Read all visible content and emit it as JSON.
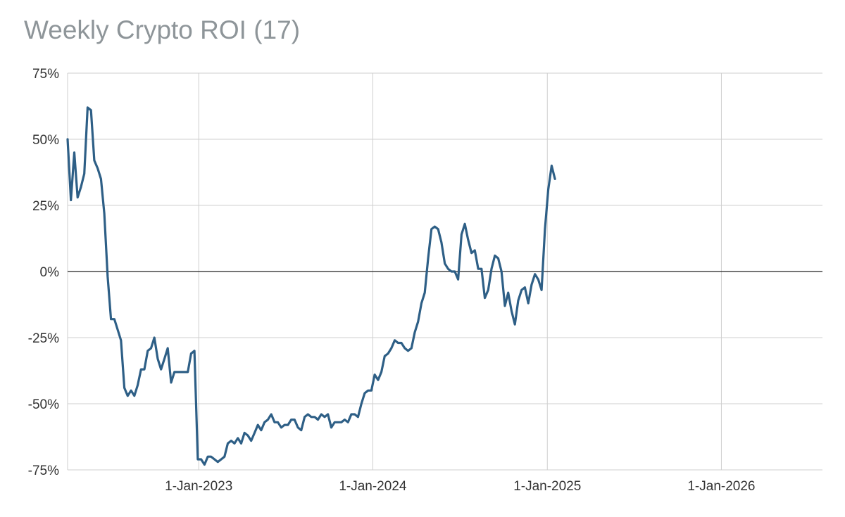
{
  "chart_data": {
    "type": "line",
    "title": "Weekly Crypto ROI (17)",
    "xlabel": "",
    "ylabel": "",
    "ylim": [
      -0.75,
      0.75
    ],
    "xlim": [
      "2022-04-01",
      "2026-08-01"
    ],
    "y_ticks": [
      {
        "value": 0.75,
        "label": "75%"
      },
      {
        "value": 0.5,
        "label": "50%"
      },
      {
        "value": 0.25,
        "label": "25%"
      },
      {
        "value": 0,
        "label": "0%"
      },
      {
        "value": -0.25,
        "label": "-25%"
      },
      {
        "value": -0.5,
        "label": "-50%"
      },
      {
        "value": -0.75,
        "label": "-75%"
      }
    ],
    "x_ticks": [
      {
        "value": "2023-01-01",
        "label": "1-Jan-2023"
      },
      {
        "value": "2024-01-01",
        "label": "1-Jan-2024"
      },
      {
        "value": "2025-01-01",
        "label": "1-Jan-2025"
      },
      {
        "value": "2026-01-01",
        "label": "1-Jan-2026"
      }
    ],
    "grid": true,
    "legend": "none",
    "series": [
      {
        "color": "#2e5f86",
        "points": [
          [
            "2022-04-01",
            0.5
          ],
          [
            "2022-04-08",
            0.27
          ],
          [
            "2022-04-15",
            0.45
          ],
          [
            "2022-04-22",
            0.28
          ],
          [
            "2022-04-29",
            0.32
          ],
          [
            "2022-05-06",
            0.37
          ],
          [
            "2022-05-13",
            0.62
          ],
          [
            "2022-05-20",
            0.61
          ],
          [
            "2022-05-27",
            0.42
          ],
          [
            "2022-06-03",
            0.39
          ],
          [
            "2022-06-10",
            0.35
          ],
          [
            "2022-06-17",
            0.22
          ],
          [
            "2022-06-24",
            -0.02
          ],
          [
            "2022-07-01",
            -0.18
          ],
          [
            "2022-07-08",
            -0.18
          ],
          [
            "2022-07-15",
            -0.22
          ],
          [
            "2022-07-22",
            -0.26
          ],
          [
            "2022-07-29",
            -0.44
          ],
          [
            "2022-08-05",
            -0.47
          ],
          [
            "2022-08-12",
            -0.45
          ],
          [
            "2022-08-19",
            -0.47
          ],
          [
            "2022-08-26",
            -0.43
          ],
          [
            "2022-09-02",
            -0.37
          ],
          [
            "2022-09-09",
            -0.37
          ],
          [
            "2022-09-16",
            -0.3
          ],
          [
            "2022-09-23",
            -0.29
          ],
          [
            "2022-09-30",
            -0.25
          ],
          [
            "2022-10-07",
            -0.33
          ],
          [
            "2022-10-14",
            -0.37
          ],
          [
            "2022-10-21",
            -0.33
          ],
          [
            "2022-10-28",
            -0.29
          ],
          [
            "2022-11-04",
            -0.42
          ],
          [
            "2022-11-11",
            -0.38
          ],
          [
            "2022-11-18",
            -0.38
          ],
          [
            "2022-11-25",
            -0.38
          ],
          [
            "2022-12-02",
            -0.38
          ],
          [
            "2022-12-09",
            -0.38
          ],
          [
            "2022-12-16",
            -0.31
          ],
          [
            "2022-12-23",
            -0.3
          ],
          [
            "2022-12-30",
            -0.71
          ],
          [
            "2023-01-06",
            -0.71
          ],
          [
            "2023-01-13",
            -0.73
          ],
          [
            "2023-01-20",
            -0.7
          ],
          [
            "2023-01-27",
            -0.7
          ],
          [
            "2023-02-03",
            -0.71
          ],
          [
            "2023-02-10",
            -0.72
          ],
          [
            "2023-02-17",
            -0.71
          ],
          [
            "2023-02-24",
            -0.7
          ],
          [
            "2023-03-03",
            -0.65
          ],
          [
            "2023-03-10",
            -0.64
          ],
          [
            "2023-03-17",
            -0.65
          ],
          [
            "2023-03-24",
            -0.63
          ],
          [
            "2023-03-31",
            -0.65
          ],
          [
            "2023-04-07",
            -0.61
          ],
          [
            "2023-04-14",
            -0.62
          ],
          [
            "2023-04-21",
            -0.64
          ],
          [
            "2023-04-28",
            -0.61
          ],
          [
            "2023-05-05",
            -0.58
          ],
          [
            "2023-05-12",
            -0.6
          ],
          [
            "2023-05-19",
            -0.57
          ],
          [
            "2023-05-26",
            -0.56
          ],
          [
            "2023-06-02",
            -0.54
          ],
          [
            "2023-06-09",
            -0.57
          ],
          [
            "2023-06-16",
            -0.57
          ],
          [
            "2023-06-23",
            -0.59
          ],
          [
            "2023-06-30",
            -0.58
          ],
          [
            "2023-07-07",
            -0.58
          ],
          [
            "2023-07-14",
            -0.56
          ],
          [
            "2023-07-21",
            -0.56
          ],
          [
            "2023-07-28",
            -0.59
          ],
          [
            "2023-08-04",
            -0.6
          ],
          [
            "2023-08-11",
            -0.55
          ],
          [
            "2023-08-18",
            -0.54
          ],
          [
            "2023-08-25",
            -0.55
          ],
          [
            "2023-09-01",
            -0.55
          ],
          [
            "2023-09-08",
            -0.56
          ],
          [
            "2023-09-15",
            -0.54
          ],
          [
            "2023-09-22",
            -0.55
          ],
          [
            "2023-09-29",
            -0.54
          ],
          [
            "2023-10-06",
            -0.59
          ],
          [
            "2023-10-13",
            -0.57
          ],
          [
            "2023-10-20",
            -0.57
          ],
          [
            "2023-10-27",
            -0.57
          ],
          [
            "2023-11-03",
            -0.56
          ],
          [
            "2023-11-10",
            -0.57
          ],
          [
            "2023-11-17",
            -0.54
          ],
          [
            "2023-11-24",
            -0.54
          ],
          [
            "2023-12-01",
            -0.55
          ],
          [
            "2023-12-08",
            -0.5
          ],
          [
            "2023-12-15",
            -0.46
          ],
          [
            "2023-12-22",
            -0.45
          ],
          [
            "2023-12-29",
            -0.45
          ],
          [
            "2024-01-05",
            -0.39
          ],
          [
            "2024-01-12",
            -0.41
          ],
          [
            "2024-01-19",
            -0.38
          ],
          [
            "2024-01-26",
            -0.32
          ],
          [
            "2024-02-02",
            -0.31
          ],
          [
            "2024-02-09",
            -0.29
          ],
          [
            "2024-02-16",
            -0.26
          ],
          [
            "2024-02-23",
            -0.27
          ],
          [
            "2024-03-01",
            -0.27
          ],
          [
            "2024-03-08",
            -0.29
          ],
          [
            "2024-03-15",
            -0.3
          ],
          [
            "2024-03-22",
            -0.29
          ],
          [
            "2024-03-29",
            -0.23
          ],
          [
            "2024-04-05",
            -0.19
          ],
          [
            "2024-04-12",
            -0.12
          ],
          [
            "2024-04-19",
            -0.08
          ],
          [
            "2024-04-26",
            0.05
          ],
          [
            "2024-05-03",
            0.16
          ],
          [
            "2024-05-10",
            0.17
          ],
          [
            "2024-05-17",
            0.16
          ],
          [
            "2024-05-24",
            0.11
          ],
          [
            "2024-05-31",
            0.03
          ],
          [
            "2024-06-07",
            0.01
          ],
          [
            "2024-06-14",
            0.0
          ],
          [
            "2024-06-21",
            0.0
          ],
          [
            "2024-06-28",
            -0.03
          ],
          [
            "2024-07-05",
            0.14
          ],
          [
            "2024-07-12",
            0.18
          ],
          [
            "2024-07-19",
            0.12
          ],
          [
            "2024-07-26",
            0.07
          ],
          [
            "2024-08-02",
            0.08
          ],
          [
            "2024-08-09",
            0.01
          ],
          [
            "2024-08-16",
            0.01
          ],
          [
            "2024-08-23",
            -0.1
          ],
          [
            "2024-08-30",
            -0.07
          ],
          [
            "2024-09-06",
            0.01
          ],
          [
            "2024-09-13",
            0.06
          ],
          [
            "2024-09-20",
            0.05
          ],
          [
            "2024-09-27",
            0.0
          ],
          [
            "2024-10-04",
            -0.13
          ],
          [
            "2024-10-11",
            -0.08
          ],
          [
            "2024-10-18",
            -0.15
          ],
          [
            "2024-10-25",
            -0.2
          ],
          [
            "2024-11-01",
            -0.11
          ],
          [
            "2024-11-08",
            -0.07
          ],
          [
            "2024-11-15",
            -0.06
          ],
          [
            "2024-11-22",
            -0.12
          ],
          [
            "2024-11-29",
            -0.05
          ],
          [
            "2024-12-06",
            -0.01
          ],
          [
            "2024-12-13",
            -0.03
          ],
          [
            "2024-12-20",
            -0.07
          ],
          [
            "2024-12-27",
            0.16
          ],
          [
            "2025-01-03",
            0.31
          ],
          [
            "2025-01-10",
            0.4
          ],
          [
            "2025-01-17",
            0.35
          ]
        ]
      }
    ]
  }
}
